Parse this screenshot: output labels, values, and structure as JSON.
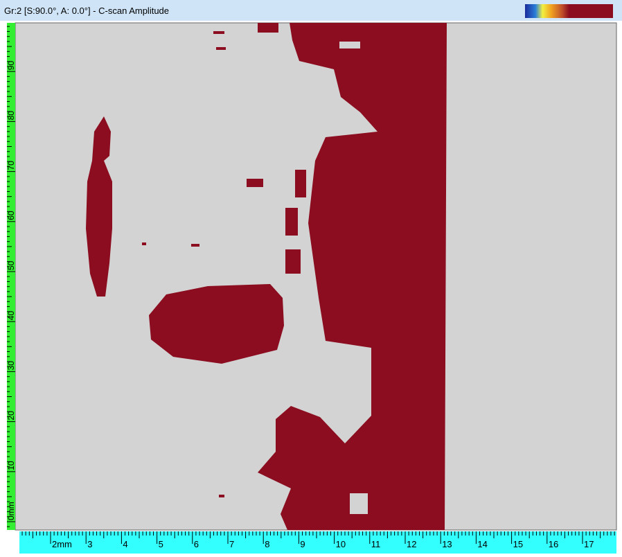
{
  "title": "Gr:2 [S:90.0°, A: 0.0°] - C-scan Amplitude",
  "left_ruler": {
    "labels": [
      "0mm",
      "10",
      "20",
      "30",
      "40",
      "50",
      "60",
      "70",
      "80",
      "90"
    ]
  },
  "bottom_ruler": {
    "labels": [
      "2mm",
      "3",
      "4",
      "5",
      "6",
      "7",
      "8",
      "9",
      "10",
      "11",
      "12",
      "13",
      "14",
      "15",
      "16",
      "17"
    ]
  }
}
